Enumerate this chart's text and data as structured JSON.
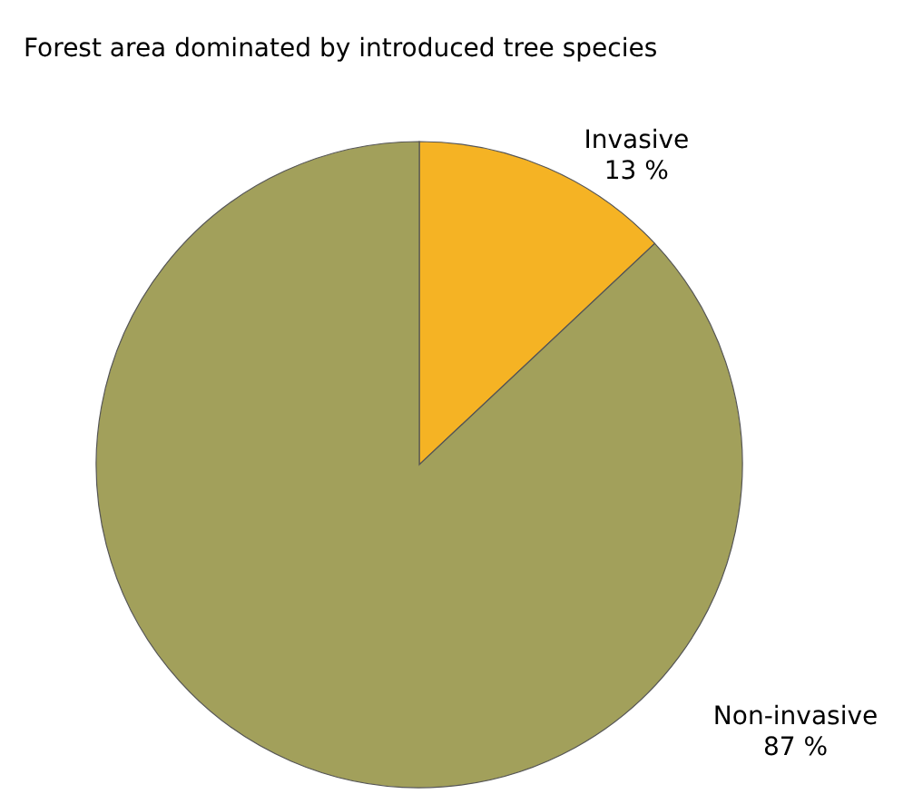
{
  "chart_data": {
    "type": "pie",
    "title": "Forest area dominated by introduced tree species",
    "categories": [
      "Invasive",
      "Non-invasive"
    ],
    "values": [
      13,
      87
    ],
    "value_labels": [
      "13 %",
      "87 %"
    ],
    "colors": [
      "#f5b324",
      "#a2a05b"
    ]
  }
}
